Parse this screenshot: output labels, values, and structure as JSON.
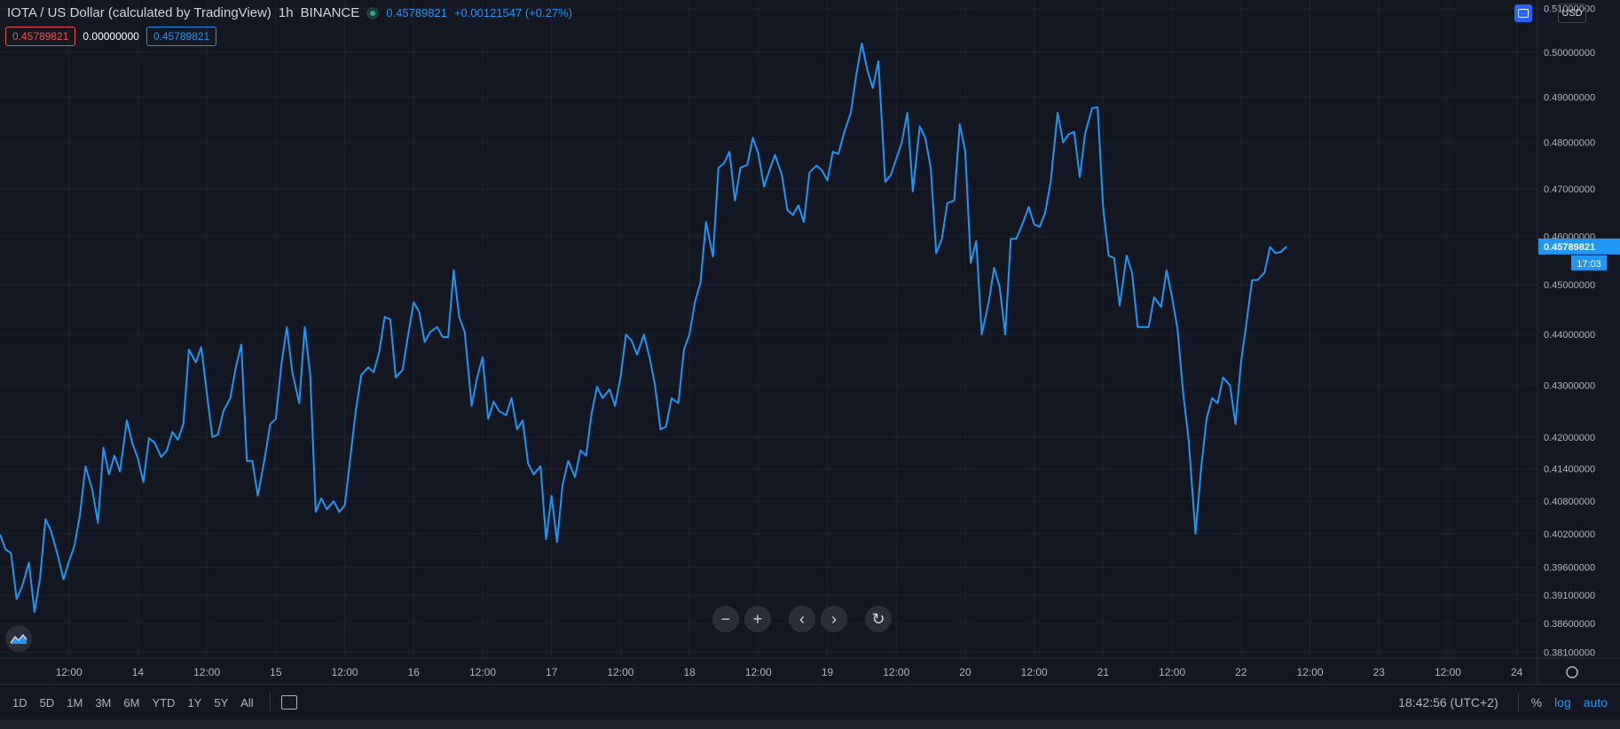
{
  "header": {
    "symbol_title": "IOTA / US Dollar (calculated by TradingView)",
    "interval": "1h",
    "exchange": "BINANCE",
    "last_value": "0.45789821",
    "change": "+0.00121547 (+0.27%)"
  },
  "badges": {
    "red": "0.45789821",
    "white": "0.00000000",
    "blue": "0.45789821"
  },
  "currency": "USD",
  "price_label": "0.45789821",
  "countdown": "17:03",
  "zoom_controls": {
    "zoom_out": "−",
    "zoom_in": "+",
    "scroll_left": "‹",
    "scroll_right": "›",
    "reset": "↻"
  },
  "bottom": {
    "ranges": [
      "1D",
      "5D",
      "1M",
      "3M",
      "6M",
      "YTD",
      "1Y",
      "5Y",
      "All"
    ],
    "clock": "18:42:56 (UTC+2)",
    "percent": "%",
    "log": "log",
    "auto": "auto"
  },
  "colors": {
    "background": "#131722",
    "line": "#2196f3",
    "grid": "#1e222d",
    "text": "#b2b5be"
  },
  "chart_data": {
    "type": "line",
    "title": "IOTA / US Dollar (calculated by TradingView)",
    "scale": "log",
    "grid": true,
    "y_ticks": [
      "0.51000000",
      "0.50000000",
      "0.49000000",
      "0.48000000",
      "0.47000000",
      "0.46000000",
      "0.45000000",
      "0.44000000",
      "0.43000000",
      "0.42000000",
      "0.41400000",
      "0.40800000",
      "0.40200000",
      "0.39600000",
      "0.39100000",
      "0.38600000",
      "0.38100000"
    ],
    "x_ticks": [
      "12:00",
      "14",
      "12:00",
      "15",
      "12:00",
      "16",
      "12:00",
      "17",
      "12:00",
      "18",
      "12:00",
      "19",
      "12:00",
      "20",
      "12:00",
      "21",
      "12:00",
      "22",
      "12:00",
      "23",
      "12:00",
      "24"
    ],
    "x_range_days": [
      13.0,
      24.15
    ],
    "ylim": [
      0.38,
      0.512
    ],
    "series": [
      {
        "values": [
          [
            13.0,
            0.4019
          ],
          [
            13.04,
            0.3992
          ],
          [
            13.08,
            0.3985
          ],
          [
            13.12,
            0.3903
          ],
          [
            13.16,
            0.3925
          ],
          [
            13.21,
            0.3968
          ],
          [
            13.25,
            0.388
          ],
          [
            13.29,
            0.394
          ],
          [
            13.33,
            0.4047
          ],
          [
            13.37,
            0.4025
          ],
          [
            13.42,
            0.398
          ],
          [
            13.46,
            0.3938
          ],
          [
            13.5,
            0.397
          ],
          [
            13.54,
            0.3998
          ],
          [
            13.58,
            0.4055
          ],
          [
            13.62,
            0.4145
          ],
          [
            13.67,
            0.41
          ],
          [
            13.71,
            0.404
          ],
          [
            13.75,
            0.418
          ],
          [
            13.79,
            0.413
          ],
          [
            13.83,
            0.4165
          ],
          [
            13.87,
            0.4135
          ],
          [
            13.92,
            0.4232
          ],
          [
            13.96,
            0.4188
          ],
          [
            14.0,
            0.416
          ],
          [
            14.04,
            0.4115
          ],
          [
            14.08,
            0.4198
          ],
          [
            14.12,
            0.419
          ],
          [
            14.17,
            0.4162
          ],
          [
            14.21,
            0.4175
          ],
          [
            14.25,
            0.421
          ],
          [
            14.29,
            0.4195
          ],
          [
            14.33,
            0.4225
          ],
          [
            14.37,
            0.437
          ],
          [
            14.42,
            0.4345
          ],
          [
            14.46,
            0.4375
          ],
          [
            14.5,
            0.4285
          ],
          [
            14.54,
            0.42
          ],
          [
            14.58,
            0.4205
          ],
          [
            14.62,
            0.425
          ],
          [
            14.67,
            0.4275
          ],
          [
            14.71,
            0.4335
          ],
          [
            14.75,
            0.438
          ],
          [
            14.79,
            0.4155
          ],
          [
            14.83,
            0.4155
          ],
          [
            14.87,
            0.409
          ],
          [
            14.92,
            0.416
          ],
          [
            14.96,
            0.4225
          ],
          [
            15.0,
            0.4235
          ],
          [
            15.04,
            0.434
          ],
          [
            15.08,
            0.4415
          ],
          [
            15.12,
            0.4325
          ],
          [
            15.17,
            0.4265
          ],
          [
            15.21,
            0.4415
          ],
          [
            15.25,
            0.432
          ],
          [
            15.29,
            0.406
          ],
          [
            15.33,
            0.4085
          ],
          [
            15.37,
            0.4065
          ],
          [
            15.42,
            0.408
          ],
          [
            15.46,
            0.406
          ],
          [
            15.5,
            0.4072
          ],
          [
            15.54,
            0.416
          ],
          [
            15.58,
            0.425
          ],
          [
            15.62,
            0.432
          ],
          [
            15.67,
            0.4335
          ],
          [
            15.71,
            0.4325
          ],
          [
            15.75,
            0.4365
          ],
          [
            15.79,
            0.4435
          ],
          [
            15.83,
            0.443
          ],
          [
            15.87,
            0.4315
          ],
          [
            15.92,
            0.433
          ],
          [
            15.96,
            0.44
          ],
          [
            16.0,
            0.4465
          ],
          [
            16.04,
            0.4445
          ],
          [
            16.08,
            0.4385
          ],
          [
            16.12,
            0.4405
          ],
          [
            16.17,
            0.4415
          ],
          [
            16.21,
            0.4395
          ],
          [
            16.25,
            0.4395
          ],
          [
            16.29,
            0.453
          ],
          [
            16.33,
            0.4435
          ],
          [
            16.37,
            0.4405
          ],
          [
            16.42,
            0.426
          ],
          [
            16.46,
            0.4315
          ],
          [
            16.5,
            0.4355
          ],
          [
            16.54,
            0.4235
          ],
          [
            16.58,
            0.4268
          ],
          [
            16.62,
            0.425
          ],
          [
            16.67,
            0.4242
          ],
          [
            16.71,
            0.4275
          ],
          [
            16.75,
            0.4215
          ],
          [
            16.79,
            0.4232
          ],
          [
            16.83,
            0.415
          ],
          [
            16.87,
            0.413
          ],
          [
            16.92,
            0.4145
          ],
          [
            16.96,
            0.401
          ],
          [
            17.0,
            0.409
          ],
          [
            17.04,
            0.4005
          ],
          [
            17.08,
            0.411
          ],
          [
            17.12,
            0.4155
          ],
          [
            17.17,
            0.4125
          ],
          [
            17.21,
            0.4175
          ],
          [
            17.25,
            0.4165
          ],
          [
            17.29,
            0.4245
          ],
          [
            17.33,
            0.4297
          ],
          [
            17.37,
            0.4275
          ],
          [
            17.42,
            0.4292
          ],
          [
            17.46,
            0.426
          ],
          [
            17.5,
            0.4315
          ],
          [
            17.54,
            0.44
          ],
          [
            17.58,
            0.4388
          ],
          [
            17.62,
            0.436
          ],
          [
            17.67,
            0.44
          ],
          [
            17.71,
            0.4355
          ],
          [
            17.75,
            0.43
          ],
          [
            17.79,
            0.4215
          ],
          [
            17.83,
            0.422
          ],
          [
            17.87,
            0.4275
          ],
          [
            17.92,
            0.4265
          ],
          [
            17.96,
            0.437
          ],
          [
            18.0,
            0.44
          ],
          [
            18.04,
            0.4465
          ],
          [
            18.08,
            0.4505
          ],
          [
            18.12,
            0.463
          ],
          [
            18.17,
            0.4558
          ],
          [
            18.21,
            0.4745
          ],
          [
            18.25,
            0.4755
          ],
          [
            18.29,
            0.478
          ],
          [
            18.33,
            0.4675
          ],
          [
            18.37,
            0.4745
          ],
          [
            18.42,
            0.4752
          ],
          [
            18.46,
            0.481
          ],
          [
            18.5,
            0.4775
          ],
          [
            18.54,
            0.4705
          ],
          [
            18.58,
            0.474
          ],
          [
            18.62,
            0.4773
          ],
          [
            18.67,
            0.473
          ],
          [
            18.71,
            0.4655
          ],
          [
            18.75,
            0.4645
          ],
          [
            18.79,
            0.4665
          ],
          [
            18.83,
            0.463
          ],
          [
            18.87,
            0.4735
          ],
          [
            18.92,
            0.475
          ],
          [
            18.96,
            0.474
          ],
          [
            19.0,
            0.4718
          ],
          [
            19.04,
            0.478
          ],
          [
            19.08,
            0.4775
          ],
          [
            19.12,
            0.482
          ],
          [
            19.17,
            0.4865
          ],
          [
            19.21,
            0.495
          ],
          [
            19.25,
            0.502
          ],
          [
            19.29,
            0.496
          ],
          [
            19.33,
            0.492
          ],
          [
            19.37,
            0.498
          ],
          [
            19.42,
            0.4715
          ],
          [
            19.46,
            0.473
          ],
          [
            19.5,
            0.4765
          ],
          [
            19.54,
            0.48
          ],
          [
            19.58,
            0.4865
          ],
          [
            19.62,
            0.4695
          ],
          [
            19.67,
            0.4835
          ],
          [
            19.71,
            0.481
          ],
          [
            19.75,
            0.4745
          ],
          [
            19.79,
            0.4565
          ],
          [
            19.83,
            0.4595
          ],
          [
            19.87,
            0.467
          ],
          [
            19.92,
            0.4675
          ],
          [
            19.96,
            0.484
          ],
          [
            20.0,
            0.478
          ],
          [
            20.04,
            0.4545
          ],
          [
            20.08,
            0.459
          ],
          [
            20.12,
            0.44
          ],
          [
            20.17,
            0.4465
          ],
          [
            20.21,
            0.4535
          ],
          [
            20.25,
            0.4495
          ],
          [
            20.29,
            0.44
          ],
          [
            20.33,
            0.4595
          ],
          [
            20.37,
            0.4595
          ],
          [
            20.42,
            0.463
          ],
          [
            20.46,
            0.4662
          ],
          [
            20.5,
            0.4625
          ],
          [
            20.54,
            0.462
          ],
          [
            20.58,
            0.465
          ],
          [
            20.62,
            0.4715
          ],
          [
            20.67,
            0.4865
          ],
          [
            20.71,
            0.48
          ],
          [
            20.75,
            0.4818
          ],
          [
            20.79,
            0.4823
          ],
          [
            20.83,
            0.4725
          ],
          [
            20.87,
            0.482
          ],
          [
            20.92,
            0.4875
          ],
          [
            20.96,
            0.4877
          ],
          [
            21.0,
            0.466
          ],
          [
            21.04,
            0.456
          ],
          [
            21.08,
            0.4555
          ],
          [
            21.12,
            0.4458
          ],
          [
            21.17,
            0.456
          ],
          [
            21.21,
            0.4525
          ],
          [
            21.25,
            0.4415
          ],
          [
            21.29,
            0.4415
          ],
          [
            21.33,
            0.4415
          ],
          [
            21.37,
            0.4475
          ],
          [
            21.42,
            0.4455
          ],
          [
            21.46,
            0.453
          ],
          [
            21.5,
            0.4475
          ],
          [
            21.54,
            0.441
          ],
          [
            21.58,
            0.4285
          ],
          [
            21.62,
            0.4195
          ],
          [
            21.67,
            0.402
          ],
          [
            21.71,
            0.414
          ],
          [
            21.75,
            0.4235
          ],
          [
            21.79,
            0.4275
          ],
          [
            21.83,
            0.4265
          ],
          [
            21.87,
            0.4315
          ],
          [
            21.92,
            0.43
          ],
          [
            21.96,
            0.4225
          ],
          [
            22.0,
            0.4345
          ],
          [
            22.04,
            0.4425
          ],
          [
            22.08,
            0.451
          ],
          [
            22.12,
            0.451
          ],
          [
            22.17,
            0.4525
          ],
          [
            22.21,
            0.4578
          ],
          [
            22.25,
            0.4565
          ],
          [
            22.29,
            0.4568
          ],
          [
            22.33,
            0.4579
          ]
        ]
      }
    ]
  }
}
